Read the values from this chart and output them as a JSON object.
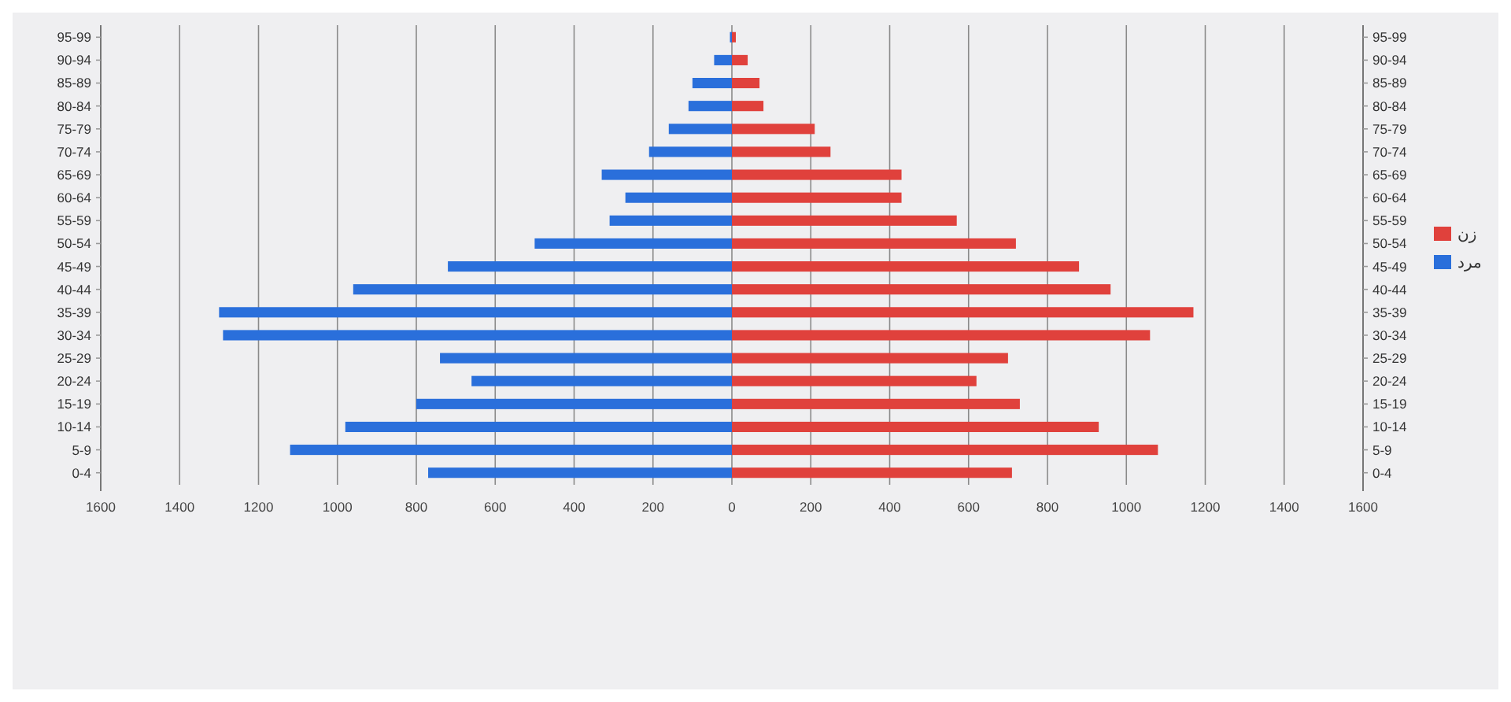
{
  "chart_data": {
    "type": "bar",
    "orientation": "horizontal",
    "stacked": true,
    "categories": [
      "95-99",
      "90-94",
      "85-89",
      "80-84",
      "75-79",
      "70-74",
      "65-69",
      "60-64",
      "55-59",
      "50-54",
      "45-49",
      "40-44",
      "35-39",
      "30-34",
      "25-29",
      "20-24",
      "15-19",
      "10-14",
      "5-9",
      "0-4"
    ],
    "y2_categories": [
      "95-99",
      "90-94",
      "85-89",
      "80-84",
      "75-79",
      "70-74",
      "65-69",
      "60-64",
      "55-59",
      "50-54",
      "45-49",
      "40-44",
      "35-39",
      "30-34",
      "25-29",
      "20-24",
      "15-19",
      "10-14",
      "5-9",
      "0-4"
    ],
    "series": [
      {
        "name": "زن",
        "color": "#e0413c",
        "values": [
          10,
          40,
          70,
          80,
          210,
          250,
          430,
          430,
          570,
          720,
          880,
          960,
          1170,
          1060,
          700,
          620,
          730,
          930,
          1080,
          710
        ]
      },
      {
        "name": "مرد",
        "color": "#2a6fdb",
        "values": [
          -5,
          -45,
          -100,
          -110,
          -160,
          -210,
          -330,
          -270,
          -310,
          -500,
          -720,
          -960,
          -1300,
          -1290,
          -740,
          -660,
          -800,
          -980,
          -1120,
          -770
        ]
      }
    ],
    "xlim": [
      -1600,
      1600
    ],
    "xticks": [
      {
        "value": -1600,
        "label": "1600"
      },
      {
        "value": -1400,
        "label": "1400"
      },
      {
        "value": -1200,
        "label": "1200"
      },
      {
        "value": -1000,
        "label": "1000"
      },
      {
        "value": -800,
        "label": "800"
      },
      {
        "value": -600,
        "label": "600"
      },
      {
        "value": -400,
        "label": "400"
      },
      {
        "value": -200,
        "label": "200"
      },
      0,
      200,
      400,
      600,
      800,
      1000,
      1200,
      1400,
      1600
    ],
    "grid": "x",
    "legend": "right"
  }
}
